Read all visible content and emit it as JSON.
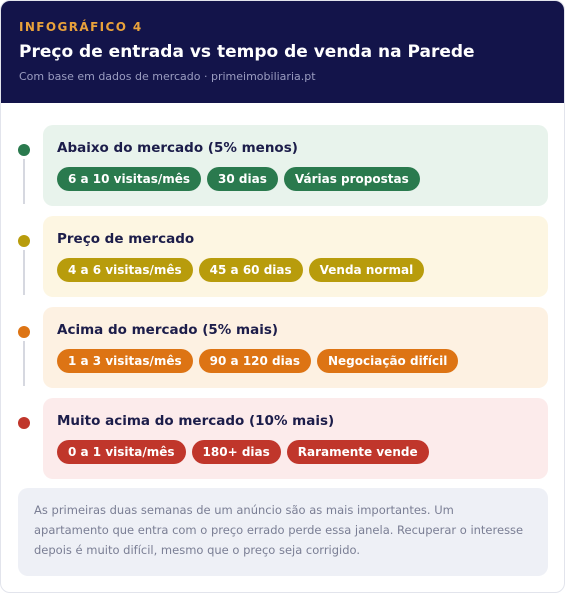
{
  "header": {
    "kicker": "INFOGRÁFICO 4",
    "title": "Preço de entrada vs tempo de venda na Parede",
    "subtitle": "Com base em dados de mercado · primeimobiliaria.pt"
  },
  "rows": [
    {
      "title": "Abaixo do mercado (5% menos)",
      "pills": [
        "6 a 10 visitas/mês",
        "30 dias",
        "Várias propostas"
      ],
      "accent": "#2a7a4e",
      "panel_bg": "#e8f3ec"
    },
    {
      "title": "Preço de mercado",
      "pills": [
        "4 a 6 visitas/mês",
        "45 a 60 dias",
        "Venda normal"
      ],
      "accent": "#b89c0c",
      "panel_bg": "#fdf6e2"
    },
    {
      "title": "Acima do mercado (5% mais)",
      "pills": [
        "1 a 3 visitas/mês",
        "90 a 120 dias",
        "Negociação difícil"
      ],
      "accent": "#dd7414",
      "panel_bg": "#fdf1e2"
    },
    {
      "title": "Muito acima do mercado (10% mais)",
      "pills": [
        "0 a 1 visita/mês",
        "180+ dias",
        "Raramente vende"
      ],
      "accent": "#c0362b",
      "panel_bg": "#fcebeb"
    }
  ],
  "note": "As primeiras duas semanas de um anúncio são as mais importantes. Um apartamento que entra com o preço errado perde essa janela. Recuperar o interesse depois é muito difícil, mesmo que o preço seja corrigido."
}
